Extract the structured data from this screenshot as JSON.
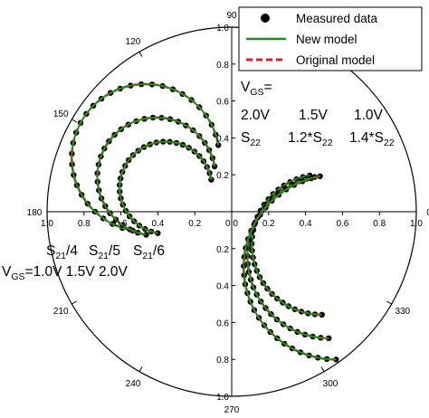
{
  "chart_data": {
    "type": "polar",
    "angle_labels": [
      "90",
      "120",
      "150",
      "180",
      "210",
      "240",
      "270",
      "300",
      "330",
      "0"
    ],
    "angle_values": [
      90,
      120,
      150,
      180,
      210,
      240,
      270,
      300,
      330,
      0
    ],
    "radial_ticks": [
      "0.0",
      "0.2",
      "0.4",
      "0.6",
      "0.8",
      "1.0"
    ],
    "radial_values": [
      0,
      0.2,
      0.4,
      0.6,
      0.8,
      1.0
    ],
    "rlim": [
      0,
      1.0
    ],
    "legend": {
      "placement": "top-right",
      "entries": [
        "Measured data",
        "New model",
        "Original model"
      ]
    },
    "colors": {
      "measured": "#000000",
      "new_model": "#1e8c1e",
      "original_model": "#e02020"
    },
    "annotations": {
      "s22_block": {
        "vgs_prefix": "V",
        "vgs_sub": "GS",
        "vgs_eq": "=",
        "vgs_values": [
          "2.0V",
          "1.5V",
          "1.0V"
        ],
        "scales": [
          "S22",
          "1.2*S22",
          "1.4*S22"
        ]
      },
      "s21_block": {
        "scales": [
          "S21/4",
          "S21/5",
          "S21/6"
        ],
        "vgs_prefix": "V",
        "vgs_sub": "GS",
        "vgs_line": "=1.0V  1.5V  2.0V"
      }
    },
    "series": [
      {
        "group": "S21",
        "label": "S21/4",
        "center_deg": 148,
        "center_r": 0.55,
        "radius": 0.4,
        "arc_start_deg": 10,
        "arc_end_deg": 260
      },
      {
        "group": "S21",
        "label": "S21/5",
        "center_deg": 155,
        "center_r": 0.45,
        "radius": 0.32,
        "arc_start_deg": 10,
        "arc_end_deg": 260
      },
      {
        "group": "S21",
        "label": "S21/6",
        "center_deg": 160,
        "center_r": 0.38,
        "radius": 0.25,
        "arc_start_deg": 10,
        "arc_end_deg": 260
      },
      {
        "group": "S22",
        "label": "S22",
        "center_deg": 340,
        "center_r": 0.52,
        "radius": 0.38,
        "arc_start_deg": 100,
        "arc_end_deg": 270
      },
      {
        "group": "S22",
        "label": "1.2*S22",
        "center_deg": 335,
        "center_r": 0.58,
        "radius": 0.44,
        "arc_start_deg": 100,
        "arc_end_deg": 270
      },
      {
        "group": "S22",
        "label": "1.4*S22",
        "center_deg": 332,
        "center_r": 0.64,
        "radius": 0.5,
        "arc_start_deg": 100,
        "arc_end_deg": 270
      }
    ]
  }
}
